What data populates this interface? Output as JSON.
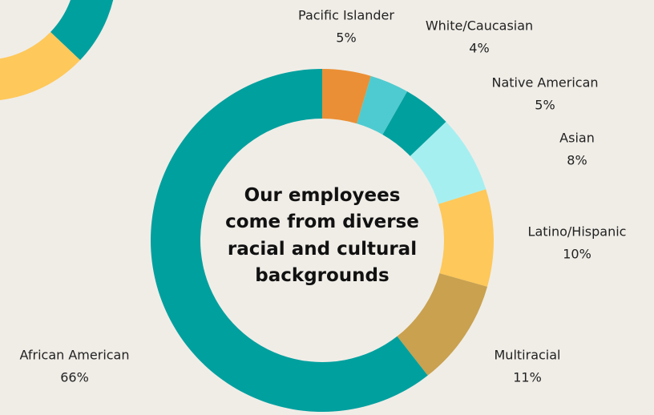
{
  "chart_data": {
    "type": "donut",
    "title": "Our employees come from diverse racial and cultural backgrounds",
    "categories": [
      "Pacific Islander",
      "White/Caucasian",
      "Native American",
      "Asian",
      "Latino/Hispanic",
      "Multiracial",
      "African American"
    ],
    "values": [
      5,
      4,
      5,
      8,
      10,
      11,
      66
    ],
    "value_labels": [
      "5%",
      "4%",
      "5%",
      "8%",
      "10%",
      "11%",
      "66%"
    ],
    "colors": [
      "#ea8f35",
      "#4ecbd0",
      "#00a09f",
      "#a6eff1",
      "#fec85a",
      "#c9a14f",
      "#00a09f"
    ]
  }
}
